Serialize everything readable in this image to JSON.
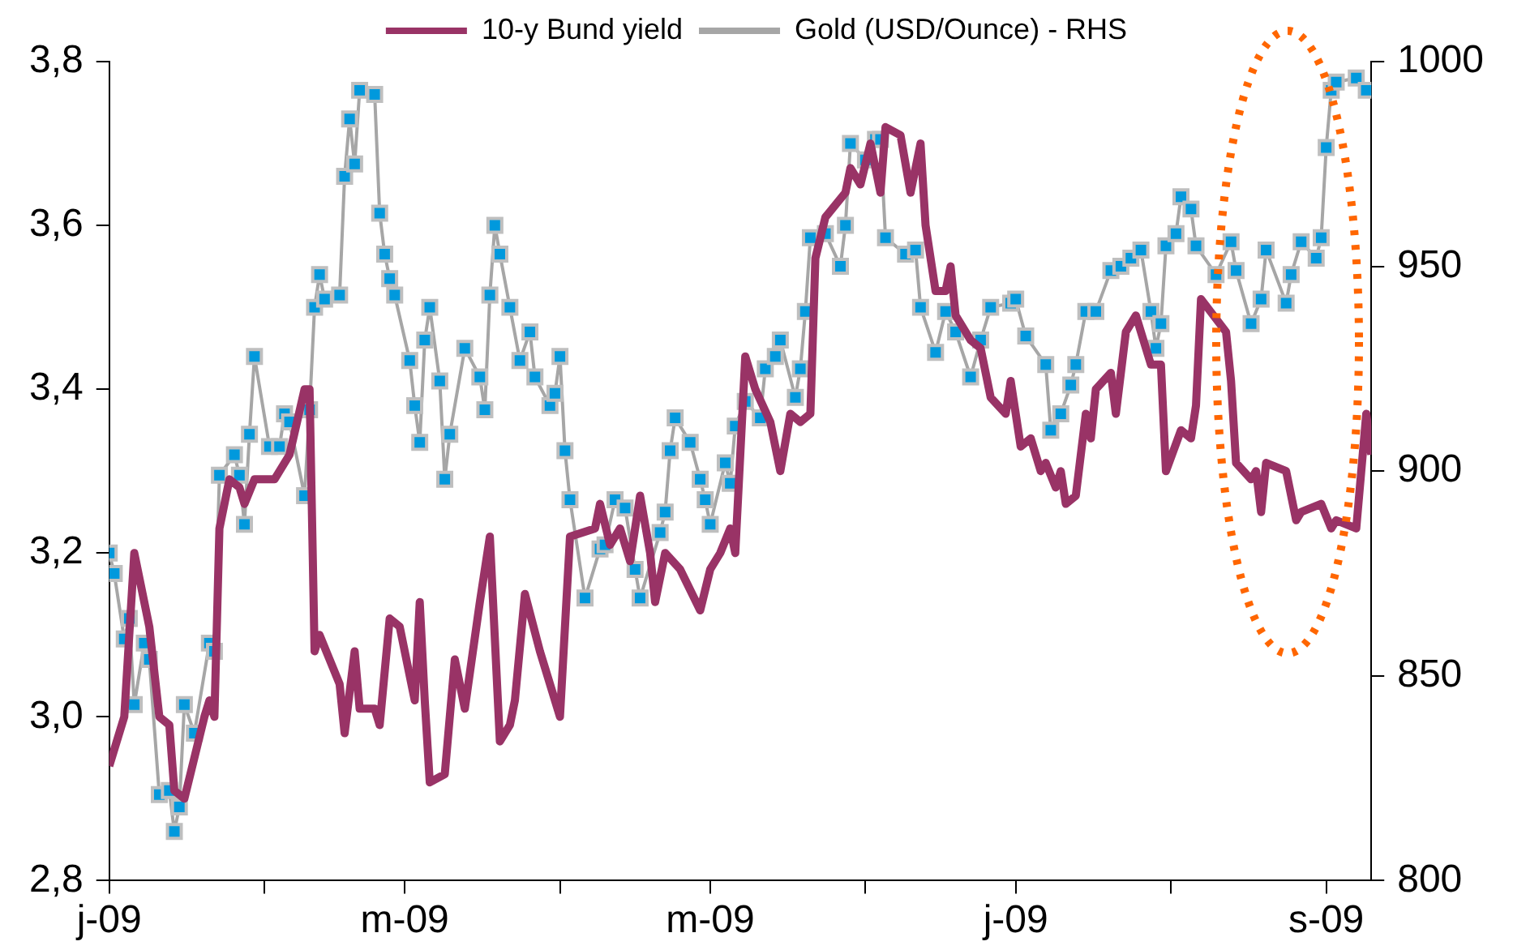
{
  "chart_data": {
    "type": "line",
    "legend": "top",
    "grid": false,
    "xlim": [
      "2009-01-01",
      "2009-09-10"
    ],
    "xticks": [
      {
        "value": "2009-01-01",
        "label": "j-09"
      },
      {
        "value": "2009-02-01",
        "label": null
      },
      {
        "value": "2009-03-01",
        "label": "m-09"
      },
      {
        "value": "2009-04-01",
        "label": null
      },
      {
        "value": "2009-05-01",
        "label": "m-09"
      },
      {
        "value": "2009-06-01",
        "label": null
      },
      {
        "value": "2009-07-01",
        "label": "j-09"
      },
      {
        "value": "2009-08-01",
        "label": null
      },
      {
        "value": "2009-09-01",
        "label": "s-09"
      }
    ],
    "ylim": [
      2.8,
      3.8
    ],
    "yticks": [
      {
        "value": 2.8,
        "label": "2,8"
      },
      {
        "value": 3.0,
        "label": "3,0"
      },
      {
        "value": 3.2,
        "label": "3,2"
      },
      {
        "value": 3.4,
        "label": "3,4"
      },
      {
        "value": 3.6,
        "label": "3,6"
      },
      {
        "value": 3.8,
        "label": "3,8"
      }
    ],
    "y2lim": [
      800,
      1000
    ],
    "y2ticks": [
      800,
      850,
      900,
      950,
      1000
    ],
    "series": [
      {
        "name": "10-y Bund yield",
        "color": "#993366",
        "marker": "none",
        "x": [
          "2009-01-01",
          "2009-01-04",
          "2009-01-06",
          "2009-01-09",
          "2009-01-11",
          "2009-01-13",
          "2009-01-14",
          "2009-01-16",
          "2009-01-20",
          "2009-01-21",
          "2009-01-22",
          "2009-01-23",
          "2009-01-25",
          "2009-01-27",
          "2009-01-28",
          "2009-01-30",
          "2009-02-03",
          "2009-02-06",
          "2009-02-09",
          "2009-02-10",
          "2009-02-11",
          "2009-02-12",
          "2009-02-16",
          "2009-02-17",
          "2009-02-19",
          "2009-02-20",
          "2009-02-23",
          "2009-02-24",
          "2009-02-26",
          "2009-02-28",
          "2009-03-03",
          "2009-03-04",
          "2009-03-05",
          "2009-03-06",
          "2009-03-09",
          "2009-03-11",
          "2009-03-13",
          "2009-03-16",
          "2009-03-18",
          "2009-03-20",
          "2009-03-22",
          "2009-03-23",
          "2009-03-25",
          "2009-03-28",
          "2009-04-01",
          "2009-04-03",
          "2009-04-08",
          "2009-04-09",
          "2009-04-11",
          "2009-04-13",
          "2009-04-15",
          "2009-04-17",
          "2009-04-19",
          "2009-04-20",
          "2009-04-22",
          "2009-04-25",
          "2009-04-29",
          "2009-05-01",
          "2009-05-03",
          "2009-05-05",
          "2009-05-06",
          "2009-05-08",
          "2009-05-10",
          "2009-05-13",
          "2009-05-15",
          "2009-05-17",
          "2009-05-19",
          "2009-05-21",
          "2009-05-22",
          "2009-05-24",
          "2009-05-28",
          "2009-05-29",
          "2009-05-31",
          "2009-06-02",
          "2009-06-04",
          "2009-06-05",
          "2009-06-08",
          "2009-06-10",
          "2009-06-12",
          "2009-06-13",
          "2009-06-15",
          "2009-06-17",
          "2009-06-18",
          "2009-06-19",
          "2009-06-22",
          "2009-06-24",
          "2009-06-26",
          "2009-06-29",
          "2009-06-30",
          "2009-07-02",
          "2009-07-04",
          "2009-07-06",
          "2009-07-07",
          "2009-07-09",
          "2009-07-10",
          "2009-07-11",
          "2009-07-13",
          "2009-07-15",
          "2009-07-16",
          "2009-07-17",
          "2009-07-20",
          "2009-07-21",
          "2009-07-23",
          "2009-07-25",
          "2009-07-28",
          "2009-07-30",
          "2009-07-31",
          "2009-08-03",
          "2009-08-05",
          "2009-08-06",
          "2009-08-07",
          "2009-08-12",
          "2009-08-13",
          "2009-08-14",
          "2009-08-17",
          "2009-08-18",
          "2009-08-19",
          "2009-08-20",
          "2009-08-24",
          "2009-08-26",
          "2009-08-27",
          "2009-08-31",
          "2009-09-02",
          "2009-09-03",
          "2009-09-07",
          "2009-09-09",
          "2009-09-10"
        ],
        "values": [
          2.94,
          3.0,
          3.2,
          3.11,
          3.0,
          2.99,
          2.91,
          2.9,
          3.0,
          3.02,
          3.0,
          3.23,
          3.29,
          3.28,
          3.26,
          3.29,
          3.29,
          3.32,
          3.4,
          3.4,
          3.08,
          3.1,
          3.04,
          2.98,
          3.08,
          3.01,
          3.01,
          2.99,
          3.12,
          3.11,
          3.02,
          3.14,
          3.02,
          2.92,
          2.93,
          3.07,
          3.01,
          3.14,
          3.22,
          2.97,
          2.99,
          3.02,
          3.15,
          3.08,
          3.0,
          3.22,
          3.23,
          3.26,
          3.21,
          3.23,
          3.19,
          3.27,
          3.2,
          3.14,
          3.2,
          3.18,
          3.13,
          3.18,
          3.2,
          3.23,
          3.2,
          3.44,
          3.4,
          3.36,
          3.3,
          3.37,
          3.36,
          3.37,
          3.56,
          3.61,
          3.64,
          3.67,
          3.65,
          3.7,
          3.64,
          3.72,
          3.71,
          3.64,
          3.7,
          3.6,
          3.52,
          3.52,
          3.55,
          3.49,
          3.46,
          3.45,
          3.39,
          3.37,
          3.41,
          3.33,
          3.34,
          3.3,
          3.31,
          3.28,
          3.3,
          3.26,
          3.27,
          3.37,
          3.34,
          3.4,
          3.42,
          3.37,
          3.47,
          3.49,
          3.43,
          3.43,
          3.3,
          3.35,
          3.34,
          3.38,
          3.51,
          3.47,
          3.41,
          3.31,
          3.29,
          3.3,
          3.25,
          3.31,
          3.3,
          3.24,
          3.25,
          3.26,
          3.23,
          3.24,
          3.23,
          3.37,
          3.32
        ]
      },
      {
        "name": "Gold (USD/Ounce) - RHS",
        "color": "#a6a6a6",
        "marker": "square",
        "axis": "y2",
        "x": [
          "2009-01-01",
          "2009-01-02",
          "2009-01-04",
          "2009-01-05",
          "2009-01-06",
          "2009-01-08",
          "2009-01-09",
          "2009-01-11",
          "2009-01-13",
          "2009-01-14",
          "2009-01-15",
          "2009-01-16",
          "2009-01-18",
          "2009-01-21",
          "2009-01-22",
          "2009-01-23",
          "2009-01-26",
          "2009-01-27",
          "2009-01-28",
          "2009-01-29",
          "2009-01-30",
          "2009-02-02",
          "2009-02-04",
          "2009-02-05",
          "2009-02-06",
          "2009-02-09",
          "2009-02-10",
          "2009-02-11",
          "2009-02-12",
          "2009-02-13",
          "2009-02-16",
          "2009-02-17",
          "2009-02-18",
          "2009-02-19",
          "2009-02-20",
          "2009-02-23",
          "2009-02-24",
          "2009-02-25",
          "2009-02-26",
          "2009-02-27",
          "2009-03-02",
          "2009-03-03",
          "2009-03-04",
          "2009-03-05",
          "2009-03-06",
          "2009-03-08",
          "2009-03-09",
          "2009-03-10",
          "2009-03-13",
          "2009-03-16",
          "2009-03-17",
          "2009-03-18",
          "2009-03-19",
          "2009-03-20",
          "2009-03-22",
          "2009-03-24",
          "2009-03-26",
          "2009-03-27",
          "2009-03-30",
          "2009-03-31",
          "2009-04-01",
          "2009-04-02",
          "2009-04-03",
          "2009-04-06",
          "2009-04-09",
          "2009-04-10",
          "2009-04-12",
          "2009-04-14",
          "2009-04-16",
          "2009-04-17",
          "2009-04-21",
          "2009-04-22",
          "2009-04-23",
          "2009-04-24",
          "2009-04-27",
          "2009-04-29",
          "2009-04-30",
          "2009-05-01",
          "2009-05-04",
          "2009-05-05",
          "2009-05-06",
          "2009-05-08",
          "2009-05-11",
          "2009-05-12",
          "2009-05-14",
          "2009-05-15",
          "2009-05-18",
          "2009-05-19",
          "2009-05-20",
          "2009-05-21",
          "2009-05-24",
          "2009-05-27",
          "2009-05-28",
          "2009-05-29",
          "2009-06-01",
          "2009-06-03",
          "2009-06-04",
          "2009-06-05",
          "2009-06-09",
          "2009-06-11",
          "2009-06-12",
          "2009-06-15",
          "2009-06-17",
          "2009-06-19",
          "2009-06-22",
          "2009-06-24",
          "2009-06-26",
          "2009-06-30",
          "2009-07-01",
          "2009-07-03",
          "2009-07-07",
          "2009-07-08",
          "2009-07-10",
          "2009-07-12",
          "2009-07-13",
          "2009-07-15",
          "2009-07-17",
          "2009-07-20",
          "2009-07-22",
          "2009-07-24",
          "2009-07-26",
          "2009-07-28",
          "2009-07-29",
          "2009-07-30",
          "2009-07-31",
          "2009-08-02",
          "2009-08-03",
          "2009-08-05",
          "2009-08-06",
          "2009-08-10",
          "2009-08-13",
          "2009-08-14",
          "2009-08-17",
          "2009-08-19",
          "2009-08-20",
          "2009-08-24",
          "2009-08-25",
          "2009-08-27",
          "2009-08-30",
          "2009-08-31",
          "2009-09-01",
          "2009-09-02",
          "2009-09-03",
          "2009-09-07",
          "2009-09-09"
        ],
        "values": [
          880,
          875,
          859,
          864,
          843,
          858,
          854,
          821,
          822,
          812,
          818,
          843,
          836,
          858,
          856,
          899,
          904,
          899,
          887,
          909,
          928,
          906,
          906,
          914,
          912,
          894,
          915,
          940,
          948,
          942,
          943,
          972,
          986,
          975,
          993,
          992,
          963,
          953,
          947,
          943,
          927,
          916,
          907,
          932,
          940,
          922,
          898,
          909,
          930,
          923,
          915,
          943,
          960,
          953,
          940,
          927,
          934,
          923,
          916,
          919,
          928,
          905,
          893,
          869,
          881,
          882,
          893,
          891,
          876,
          869,
          885,
          890,
          905,
          913,
          907,
          898,
          893,
          887,
          902,
          897,
          911,
          917,
          913,
          925,
          928,
          932,
          918,
          925,
          939,
          957,
          958,
          950,
          960,
          980,
          976,
          981,
          981,
          957,
          953,
          954,
          940,
          929,
          939,
          934,
          923,
          932,
          940,
          941,
          942,
          933,
          926,
          910,
          914,
          921,
          926,
          939,
          939,
          949,
          950,
          952,
          954,
          939,
          930,
          936,
          955,
          958,
          967,
          964,
          955,
          948,
          956,
          949,
          936,
          942,
          954,
          941,
          948,
          956,
          952,
          957,
          979,
          993,
          995,
          996,
          993
        ]
      }
    ]
  }
}
